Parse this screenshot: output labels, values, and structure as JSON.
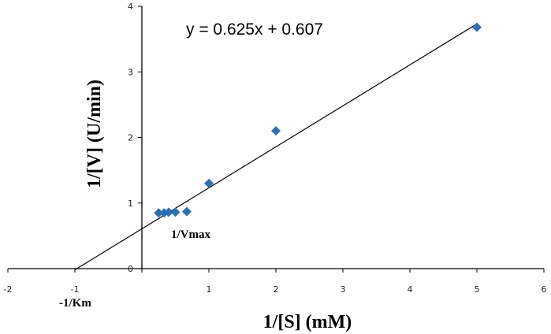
{
  "chart_data": {
    "type": "scatter",
    "xlabel": "1/[S] (mM)",
    "ylabel": "1/[V] (U/min)",
    "xlim": [
      -2,
      6
    ],
    "ylim": [
      0,
      4
    ],
    "xticks": [
      -2,
      -1,
      0,
      1,
      2,
      3,
      4,
      5,
      6
    ],
    "yticks": [
      0,
      1,
      2,
      3,
      4
    ],
    "xtick_labels": [
      "-2",
      "-1",
      "",
      "1",
      "2",
      "3",
      "4",
      "5",
      "6"
    ],
    "ytick_labels": [
      "0",
      "1",
      "2",
      "3",
      "4"
    ],
    "grid": false,
    "legend": false,
    "marker_color": "#2e6fb0",
    "series": [
      {
        "points": [
          {
            "x": 0.25,
            "y": 0.85
          },
          {
            "x": 0.33,
            "y": 0.85
          },
          {
            "x": 0.4,
            "y": 0.86
          },
          {
            "x": 0.5,
            "y": 0.86
          },
          {
            "x": 0.67,
            "y": 0.87
          },
          {
            "x": 1,
            "y": 1.3
          },
          {
            "x": 2,
            "y": 2.1
          },
          {
            "x": 5,
            "y": 3.68
          }
        ]
      }
    ],
    "trendline": {
      "slope": 0.625,
      "intercept": 0.607,
      "x_range": [
        -1,
        5
      ]
    },
    "annotations": {
      "equation": "y = 0.625x + 0.607",
      "vmax": "1/Vmax",
      "km": "-1/Km"
    }
  }
}
